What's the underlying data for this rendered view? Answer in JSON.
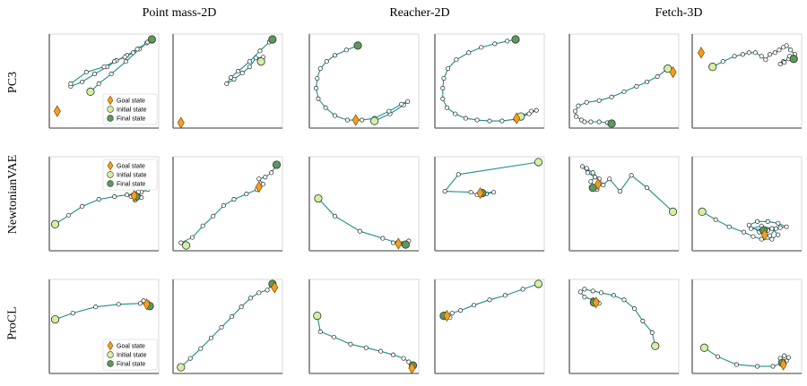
{
  "column_titles": [
    "Point mass-2D",
    "Reacher-2D",
    "Fetch-3D"
  ],
  "row_labels": [
    "PC3",
    "NewtonianVAE",
    "ProCL"
  ],
  "legend_entries": {
    "goal": "Goal state",
    "initial": "Initial state",
    "final": "Final state"
  },
  "colors": {
    "trajectory": "#1a8f8f",
    "waypoint_fill": "#ffffff",
    "goal": "#f0a020",
    "initial": "#d3f0a0",
    "final": "#5a9a5a",
    "axis": "#7a7a7a",
    "frame": "#d8d8d8"
  },
  "chart_data": [
    {
      "type": "scatter",
      "row": "PC3",
      "column": "Point mass-2D",
      "panel": 1,
      "legend": true,
      "goal": [
        0.05,
        0.16
      ],
      "points": [
        [
          0.37,
          0.38
        ],
        [
          0.45,
          0.47
        ],
        [
          0.57,
          0.58
        ],
        [
          0.71,
          0.72
        ],
        [
          0.84,
          0.86
        ],
        [
          0.91,
          0.93
        ],
        [
          0.82,
          0.86
        ],
        [
          0.72,
          0.79
        ],
        [
          0.62,
          0.73
        ],
        [
          0.53,
          0.66
        ],
        [
          0.41,
          0.58
        ],
        [
          0.29,
          0.49
        ],
        [
          0.18,
          0.44
        ],
        [
          0.18,
          0.47
        ],
        [
          0.33,
          0.6
        ],
        [
          0.5,
          0.66
        ],
        [
          0.6,
          0.72
        ],
        [
          0.7,
          0.77
        ],
        [
          0.78,
          0.82
        ],
        [
          0.92,
          0.94
        ],
        [
          0.96,
          0.97
        ]
      ]
    },
    {
      "type": "scatter",
      "row": "PC3",
      "column": "Point mass-2D",
      "panel": 2,
      "legend": false,
      "goal": [
        0.05,
        0.03
      ],
      "points": [
        [
          0.82,
          0.72
        ],
        [
          0.84,
          0.77
        ],
        [
          0.77,
          0.76
        ],
        [
          0.71,
          0.66
        ],
        [
          0.64,
          0.59
        ],
        [
          0.56,
          0.52
        ],
        [
          0.49,
          0.47
        ],
        [
          0.53,
          0.54
        ],
        [
          0.6,
          0.61
        ],
        [
          0.71,
          0.72
        ],
        [
          0.81,
          0.84
        ],
        [
          0.9,
          0.94
        ],
        [
          0.93,
          0.97
        ]
      ]
    },
    {
      "type": "scatter",
      "row": "PC3",
      "column": "Reacher-2D",
      "panel": 1,
      "legend": false,
      "goal": [
        0.42,
        0.06
      ],
      "points": [
        [
          0.6,
          0.05
        ],
        [
          0.75,
          0.13
        ],
        [
          0.88,
          0.23
        ],
        [
          0.92,
          0.27
        ],
        [
          0.86,
          0.24
        ],
        [
          0.74,
          0.16
        ],
        [
          0.6,
          0.08
        ],
        [
          0.48,
          0.06
        ],
        [
          0.34,
          0.06
        ],
        [
          0.22,
          0.11
        ],
        [
          0.13,
          0.2
        ],
        [
          0.06,
          0.3
        ],
        [
          0.04,
          0.42
        ],
        [
          0.05,
          0.53
        ],
        [
          0.08,
          0.64
        ],
        [
          0.14,
          0.72
        ],
        [
          0.22,
          0.79
        ],
        [
          0.33,
          0.85
        ],
        [
          0.44,
          0.9
        ]
      ]
    },
    {
      "type": "scatter",
      "row": "PC3",
      "column": "Reacher-2D",
      "panel": 2,
      "legend": false,
      "goal": [
        0.76,
        0.08
      ],
      "points": [
        [
          0.8,
          0.1
        ],
        [
          0.9,
          0.16
        ],
        [
          0.95,
          0.17
        ],
        [
          0.88,
          0.13
        ],
        [
          0.75,
          0.07
        ],
        [
          0.62,
          0.05
        ],
        [
          0.5,
          0.05
        ],
        [
          0.38,
          0.06
        ],
        [
          0.27,
          0.08
        ],
        [
          0.17,
          0.13
        ],
        [
          0.09,
          0.2
        ],
        [
          0.05,
          0.3
        ],
        [
          0.05,
          0.42
        ],
        [
          0.06,
          0.53
        ],
        [
          0.1,
          0.64
        ],
        [
          0.18,
          0.74
        ],
        [
          0.3,
          0.82
        ],
        [
          0.42,
          0.88
        ],
        [
          0.55,
          0.92
        ],
        [
          0.67,
          0.95
        ],
        [
          0.75,
          0.97
        ]
      ]
    },
    {
      "type": "scatter",
      "row": "PC3",
      "column": "Fetch-3D",
      "panel": 1,
      "legend": false,
      "goal": [
        0.97,
        0.6
      ],
      "points": [
        [
          0.92,
          0.64
        ],
        [
          0.82,
          0.55
        ],
        [
          0.72,
          0.49
        ],
        [
          0.62,
          0.44
        ],
        [
          0.5,
          0.38
        ],
        [
          0.38,
          0.32
        ],
        [
          0.26,
          0.28
        ],
        [
          0.14,
          0.26
        ],
        [
          0.06,
          0.22
        ],
        [
          0.03,
          0.16
        ],
        [
          0.04,
          0.1
        ],
        [
          0.09,
          0.06
        ],
        [
          0.12,
          0.04
        ],
        [
          0.18,
          0.04
        ],
        [
          0.26,
          0.04
        ],
        [
          0.34,
          0.03
        ],
        [
          0.38,
          0.02
        ]
      ]
    },
    {
      "type": "scatter",
      "row": "PC3",
      "column": "Fetch-3D",
      "panel": 2,
      "legend": false,
      "goal": [
        0.06,
        0.82
      ],
      "points": [
        [
          0.17,
          0.66
        ],
        [
          0.27,
          0.72
        ],
        [
          0.38,
          0.78
        ],
        [
          0.46,
          0.8
        ],
        [
          0.52,
          0.82
        ],
        [
          0.58,
          0.82
        ],
        [
          0.64,
          0.78
        ],
        [
          0.68,
          0.74
        ],
        [
          0.72,
          0.8
        ],
        [
          0.77,
          0.82
        ],
        [
          0.81,
          0.85
        ],
        [
          0.85,
          0.88
        ],
        [
          0.88,
          0.9
        ],
        [
          0.92,
          0.85
        ],
        [
          0.96,
          0.8
        ],
        [
          0.9,
          0.75
        ],
        [
          0.85,
          0.72
        ],
        [
          0.82,
          0.69
        ],
        [
          0.86,
          0.71
        ],
        [
          0.91,
          0.78
        ],
        [
          0.95,
          0.75
        ]
      ]
    },
    {
      "type": "scatter",
      "row": "NewtonianVAE",
      "column": "Point mass-2D",
      "panel": 1,
      "legend": true,
      "goal": [
        0.79,
        0.59
      ],
      "points": [
        [
          0.03,
          0.27
        ],
        [
          0.16,
          0.37
        ],
        [
          0.29,
          0.47
        ],
        [
          0.45,
          0.55
        ],
        [
          0.6,
          0.58
        ],
        [
          0.72,
          0.6
        ],
        [
          0.8,
          0.61
        ],
        [
          0.86,
          0.63
        ],
        [
          0.92,
          0.66
        ],
        [
          0.82,
          0.62
        ],
        [
          0.76,
          0.58
        ],
        [
          0.8,
          0.54
        ],
        [
          0.86,
          0.57
        ],
        [
          0.83,
          0.63
        ],
        [
          0.78,
          0.6
        ],
        [
          0.81,
          0.58
        ]
      ]
    },
    {
      "type": "scatter",
      "row": "NewtonianVAE",
      "column": "Point mass-2D",
      "panel": 2,
      "legend": false,
      "goal": [
        0.8,
        0.69
      ],
      "points": [
        [
          0.1,
          0.03
        ],
        [
          0.05,
          0.06
        ],
        [
          0.16,
          0.12
        ],
        [
          0.26,
          0.25
        ],
        [
          0.36,
          0.36
        ],
        [
          0.46,
          0.48
        ],
        [
          0.56,
          0.55
        ],
        [
          0.68,
          0.61
        ],
        [
          0.78,
          0.66
        ],
        [
          0.84,
          0.72
        ],
        [
          0.8,
          0.78
        ],
        [
          0.86,
          0.8
        ],
        [
          0.92,
          0.85
        ],
        [
          0.97,
          0.94
        ]
      ]
    },
    {
      "type": "scatter",
      "row": "NewtonianVAE",
      "column": "Reacher-2D",
      "panel": 1,
      "legend": false,
      "goal": [
        0.83,
        0.05
      ],
      "points": [
        [
          0.06,
          0.56
        ],
        [
          0.22,
          0.36
        ],
        [
          0.46,
          0.19
        ],
        [
          0.68,
          0.11
        ],
        [
          0.82,
          0.06
        ],
        [
          0.93,
          0.08
        ],
        [
          0.85,
          0.05
        ],
        [
          0.78,
          0.06
        ],
        [
          0.9,
          0.04
        ]
      ]
    },
    {
      "type": "scatter",
      "row": "NewtonianVAE",
      "column": "Reacher-2D",
      "panel": 2,
      "legend": false,
      "goal": [
        0.41,
        0.62
      ],
      "points": [
        [
          0.97,
          0.97
        ],
        [
          0.2,
          0.83
        ],
        [
          0.07,
          0.64
        ],
        [
          0.32,
          0.63
        ],
        [
          0.38,
          0.6
        ],
        [
          0.47,
          0.61
        ],
        [
          0.54,
          0.63
        ],
        [
          0.43,
          0.62
        ]
      ]
    },
    {
      "type": "scatter",
      "row": "NewtonianVAE",
      "column": "Fetch-3D",
      "panel": 1,
      "legend": false,
      "goal": [
        0.25,
        0.72
      ],
      "points": [
        [
          0.97,
          0.41
        ],
        [
          0.72,
          0.68
        ],
        [
          0.57,
          0.82
        ],
        [
          0.46,
          0.64
        ],
        [
          0.36,
          0.78
        ],
        [
          0.3,
          0.71
        ],
        [
          0.26,
          0.78
        ],
        [
          0.2,
          0.85
        ],
        [
          0.14,
          0.9
        ],
        [
          0.1,
          0.92
        ],
        [
          0.15,
          0.85
        ],
        [
          0.22,
          0.8
        ],
        [
          0.18,
          0.75
        ],
        [
          0.24,
          0.66
        ],
        [
          0.2,
          0.68
        ]
      ]
    },
    {
      "type": "scatter",
      "row": "NewtonianVAE",
      "column": "Fetch-3D",
      "panel": 2,
      "legend": false,
      "goal": [
        0.67,
        0.15
      ],
      "points": [
        [
          0.07,
          0.41
        ],
        [
          0.2,
          0.32
        ],
        [
          0.33,
          0.24
        ],
        [
          0.47,
          0.18
        ],
        [
          0.56,
          0.13
        ],
        [
          0.64,
          0.1
        ],
        [
          0.74,
          0.1
        ],
        [
          0.8,
          0.15
        ],
        [
          0.74,
          0.22
        ],
        [
          0.64,
          0.25
        ],
        [
          0.54,
          0.22
        ],
        [
          0.7,
          0.2
        ],
        [
          0.82,
          0.23
        ],
        [
          0.88,
          0.24
        ],
        [
          0.8,
          0.28
        ],
        [
          0.7,
          0.3
        ],
        [
          0.6,
          0.3
        ],
        [
          0.52,
          0.26
        ],
        [
          0.62,
          0.18
        ],
        [
          0.72,
          0.14
        ],
        [
          0.78,
          0.22
        ],
        [
          0.66,
          0.2
        ]
      ]
    },
    {
      "type": "scatter",
      "row": "ProCL",
      "column": "Point mass-2D",
      "panel": 1,
      "legend": true,
      "goal": [
        0.91,
        0.75
      ],
      "points": [
        [
          0.03,
          0.58
        ],
        [
          0.2,
          0.65
        ],
        [
          0.42,
          0.72
        ],
        [
          0.64,
          0.75
        ],
        [
          0.85,
          0.76
        ],
        [
          0.92,
          0.77
        ],
        [
          0.88,
          0.79
        ],
        [
          0.94,
          0.73
        ]
      ]
    },
    {
      "type": "scatter",
      "row": "ProCL",
      "column": "Point mass-2D",
      "panel": 2,
      "legend": false,
      "goal": [
        0.95,
        0.94
      ],
      "points": [
        [
          0.05,
          0.04
        ],
        [
          0.14,
          0.14
        ],
        [
          0.24,
          0.25
        ],
        [
          0.34,
          0.37
        ],
        [
          0.44,
          0.49
        ],
        [
          0.54,
          0.61
        ],
        [
          0.63,
          0.72
        ],
        [
          0.72,
          0.82
        ],
        [
          0.8,
          0.88
        ],
        [
          0.88,
          0.91
        ],
        [
          0.93,
          0.98
        ]
      ]
    },
    {
      "type": "scatter",
      "row": "ProCL",
      "column": "Reacher-2D",
      "panel": 1,
      "legend": false,
      "goal": [
        0.96,
        0.03
      ],
      "points": [
        [
          0.05,
          0.62
        ],
        [
          0.08,
          0.44
        ],
        [
          0.21,
          0.38
        ],
        [
          0.37,
          0.3
        ],
        [
          0.52,
          0.26
        ],
        [
          0.66,
          0.22
        ],
        [
          0.78,
          0.18
        ],
        [
          0.88,
          0.14
        ],
        [
          0.93,
          0.1
        ],
        [
          0.97,
          0.06
        ]
      ]
    },
    {
      "type": "scatter",
      "row": "ProCL",
      "column": "Reacher-2D",
      "panel": 2,
      "legend": false,
      "goal": [
        0.09,
        0.62
      ],
      "points": [
        [
          0.97,
          0.98
        ],
        [
          0.82,
          0.92
        ],
        [
          0.65,
          0.85
        ],
        [
          0.5,
          0.8
        ],
        [
          0.35,
          0.74
        ],
        [
          0.22,
          0.68
        ],
        [
          0.14,
          0.65
        ],
        [
          0.08,
          0.64
        ],
        [
          0.12,
          0.6
        ],
        [
          0.06,
          0.62
        ]
      ]
    },
    {
      "type": "scatter",
      "row": "ProCL",
      "column": "Fetch-3D",
      "panel": 1,
      "legend": false,
      "goal": [
        0.23,
        0.77
      ],
      "points": [
        [
          0.8,
          0.28
        ],
        [
          0.77,
          0.43
        ],
        [
          0.68,
          0.56
        ],
        [
          0.6,
          0.7
        ],
        [
          0.5,
          0.8
        ],
        [
          0.4,
          0.85
        ],
        [
          0.28,
          0.88
        ],
        [
          0.2,
          0.9
        ],
        [
          0.12,
          0.92
        ],
        [
          0.08,
          0.89
        ],
        [
          0.12,
          0.83
        ],
        [
          0.2,
          0.8
        ],
        [
          0.24,
          0.78
        ],
        [
          0.22,
          0.75
        ],
        [
          0.26,
          0.76
        ],
        [
          0.21,
          0.77
        ]
      ]
    },
    {
      "type": "scatter",
      "row": "ProCL",
      "column": "Fetch-3D",
      "panel": 2,
      "legend": false,
      "goal": [
        0.85,
        0.07
      ],
      "points": [
        [
          0.09,
          0.26
        ],
        [
          0.22,
          0.16
        ],
        [
          0.4,
          0.07
        ],
        [
          0.6,
          0.05
        ],
        [
          0.75,
          0.05
        ],
        [
          0.86,
          0.1
        ],
        [
          0.9,
          0.15
        ],
        [
          0.86,
          0.17
        ],
        [
          0.82,
          0.14
        ],
        [
          0.88,
          0.11
        ],
        [
          0.84,
          0.09
        ]
      ]
    }
  ]
}
